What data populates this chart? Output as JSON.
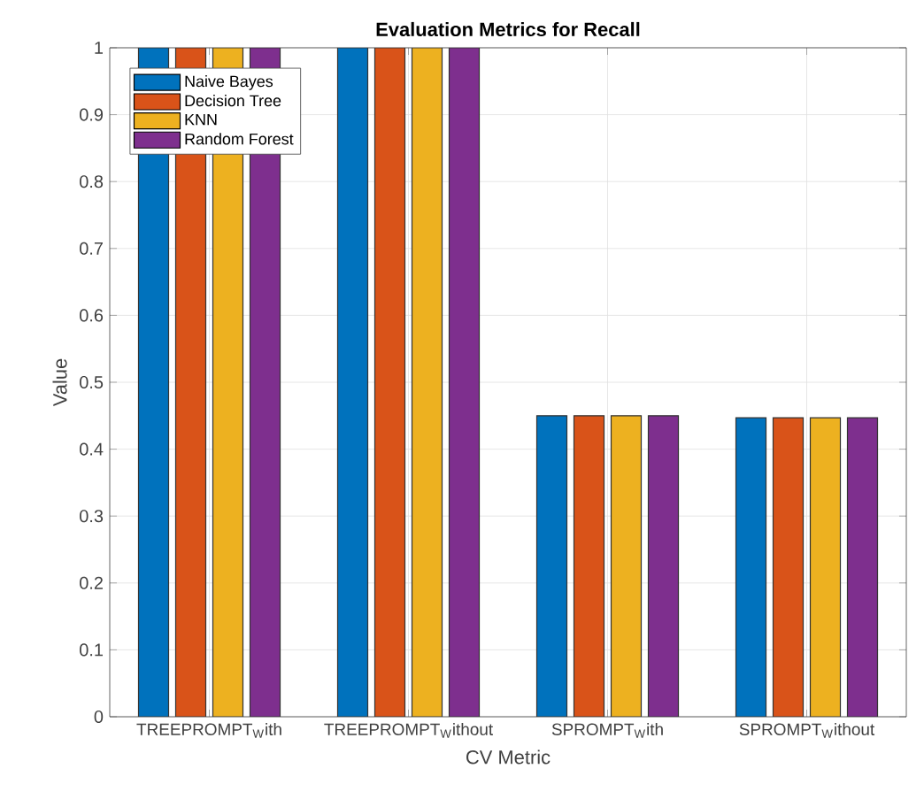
{
  "chart_data": {
    "type": "bar",
    "title": "Evaluation Metrics for Recall",
    "xlabel": "CV Metric",
    "ylabel": "Value",
    "categories": [
      "TREEPROMPT$_{W}$ith",
      "TREEPROMPT$_{W}$ithout",
      "SPROMPT$_{W}$ith",
      "SPROMPT$_{W}$ithout"
    ],
    "series": [
      {
        "name": "Naive Bayes",
        "color": "#0072bd",
        "values": [
          1,
          1,
          0.45,
          0.447
        ]
      },
      {
        "name": "Decision Tree",
        "color": "#d95319",
        "values": [
          1,
          1,
          0.45,
          0.447
        ]
      },
      {
        "name": "KNN",
        "color": "#edb120",
        "values": [
          1,
          1,
          0.45,
          0.447
        ]
      },
      {
        "name": "Random Forest",
        "color": "#7e2f8e",
        "values": [
          1,
          1,
          0.45,
          0.447
        ]
      }
    ],
    "ylim": [
      0,
      1
    ],
    "yticks": [
      0,
      0.1,
      0.2,
      0.3,
      0.4,
      0.5,
      0.6,
      0.7,
      0.8,
      0.9,
      1
    ],
    "grid": true,
    "legend": "top left"
  }
}
